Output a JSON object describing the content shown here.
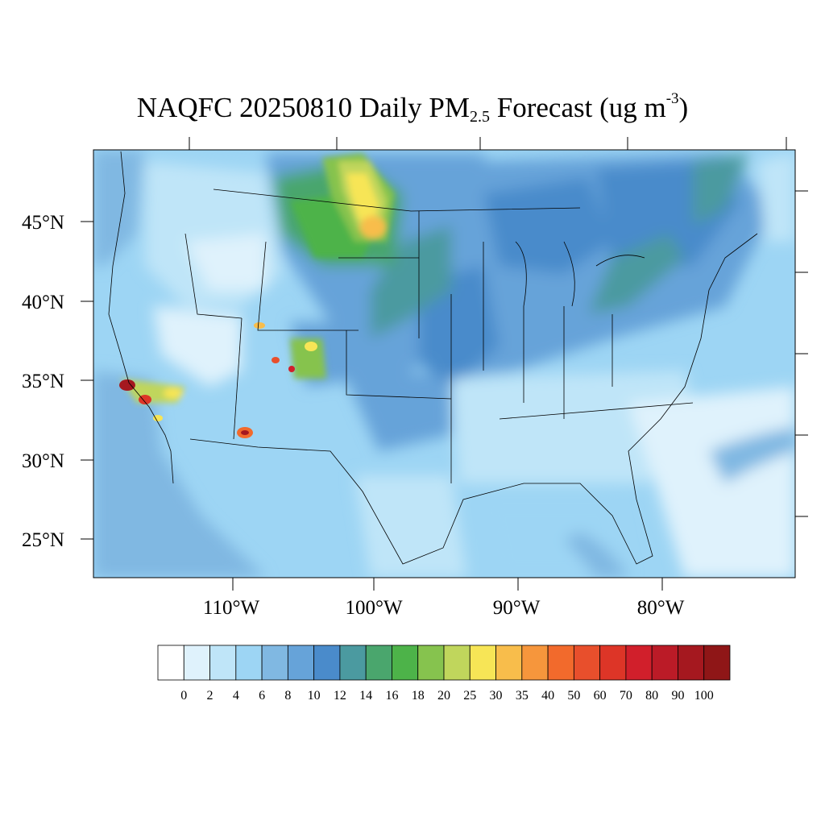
{
  "title": {
    "prefix": "NAQFC 20250810 Daily PM",
    "subscript": "2.5",
    "middle": " Forecast (ug m",
    "superscript": "-3",
    "suffix": ")"
  },
  "axes": {
    "lat_labels": [
      "45°N",
      "40°N",
      "35°N",
      "30°N",
      "25°N"
    ],
    "lon_labels": [
      "110°W",
      "100°W",
      "90°W",
      "80°W"
    ]
  },
  "colorbar": {
    "labels": [
      "0",
      "2",
      "4",
      "6",
      "8",
      "10",
      "12",
      "14",
      "16",
      "18",
      "20",
      "25",
      "30",
      "35",
      "40",
      "50",
      "60",
      "70",
      "80",
      "90",
      "100"
    ],
    "colors": [
      "#ffffff",
      "#dff2fc",
      "#bfe5f8",
      "#9dd5f4",
      "#80b8e2",
      "#66a3d9",
      "#4a8bcb",
      "#4b9aa0",
      "#4aa66d",
      "#4db349",
      "#86c34e",
      "#c0d65c",
      "#f7e556",
      "#f8bd4b",
      "#f6963c",
      "#f26a2c",
      "#e84f2c",
      "#dd3527",
      "#d11f2b",
      "#bb1b27",
      "#a5181f",
      "#8f1617"
    ]
  }
}
